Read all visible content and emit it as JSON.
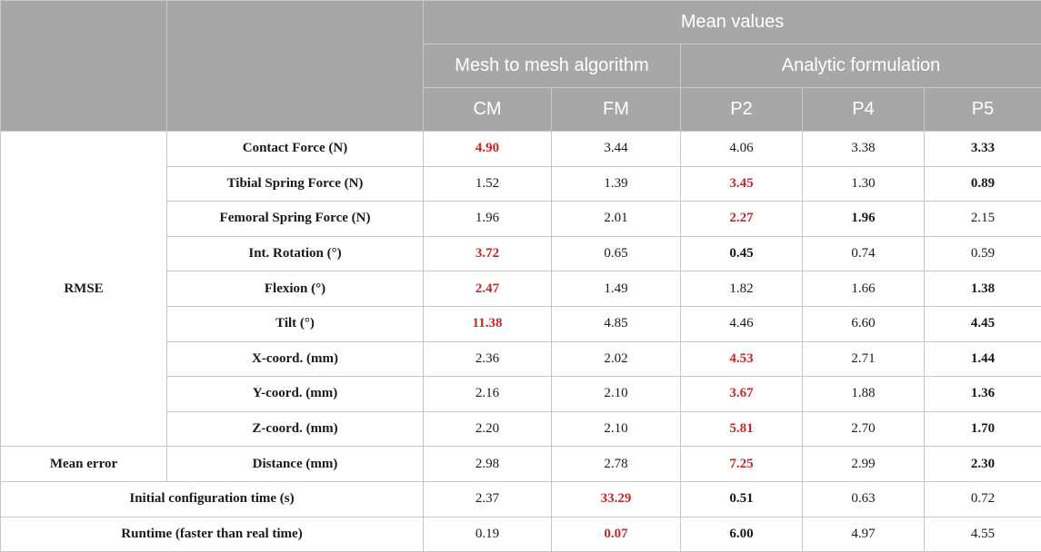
{
  "header": {
    "group_title": "Mean values",
    "subgroup_mesh": "Mesh to mesh algorithm",
    "subgroup_analytic": "Analytic formulation",
    "columns": [
      "CM",
      "FM",
      "P2",
      "P4",
      "P5"
    ]
  },
  "groups": {
    "rmse": "RMSE",
    "mean_error": "Mean error"
  },
  "rows": [
    {
      "label": "Contact Force (N)",
      "values": [
        "4.90",
        "3.44",
        "4.06",
        "3.38",
        "3.33"
      ],
      "style": [
        "red",
        "",
        "",
        "",
        "bold"
      ]
    },
    {
      "label": "Tibial Spring Force (N)",
      "values": [
        "1.52",
        "1.39",
        "3.45",
        "1.30",
        "0.89"
      ],
      "style": [
        "",
        "",
        "red",
        "",
        "bold"
      ]
    },
    {
      "label": "Femoral Spring Force (N)",
      "values": [
        "1.96",
        "2.01",
        "2.27",
        "1.96",
        "2.15"
      ],
      "style": [
        "",
        "",
        "red",
        "bold",
        ""
      ]
    },
    {
      "label": "Int. Rotation (°)",
      "values": [
        "3.72",
        "0.65",
        "0.45",
        "0.74",
        "0.59"
      ],
      "style": [
        "red",
        "",
        "bold",
        "",
        ""
      ]
    },
    {
      "label": "Flexion (°)",
      "values": [
        "2.47",
        "1.49",
        "1.82",
        "1.66",
        "1.38"
      ],
      "style": [
        "red",
        "",
        "",
        "",
        "bold"
      ]
    },
    {
      "label": "Tilt (°)",
      "values": [
        "11.38",
        "4.85",
        "4.46",
        "6.60",
        "4.45"
      ],
      "style": [
        "red",
        "",
        "",
        "",
        "bold"
      ]
    },
    {
      "label": "X-coord. (mm)",
      "values": [
        "2.36",
        "2.02",
        "4.53",
        "2.71",
        "1.44"
      ],
      "style": [
        "",
        "",
        "red",
        "",
        "bold"
      ]
    },
    {
      "label": "Y-coord. (mm)",
      "values": [
        "2.16",
        "2.10",
        "3.67",
        "1.88",
        "1.36"
      ],
      "style": [
        "",
        "",
        "red",
        "",
        "bold"
      ]
    },
    {
      "label": "Z-coord. (mm)",
      "values": [
        "2.20",
        "2.10",
        "5.81",
        "2.70",
        "1.70"
      ],
      "style": [
        "",
        "",
        "red",
        "",
        "bold"
      ]
    },
    {
      "label": "Distance (mm)",
      "values": [
        "2.98",
        "2.78",
        "7.25",
        "2.99",
        "2.30"
      ],
      "style": [
        "",
        "",
        "red",
        "",
        "bold"
      ]
    },
    {
      "label": "Initial configuration time (s)",
      "values": [
        "2.37",
        "33.29",
        "0.51",
        "0.63",
        "0.72"
      ],
      "style": [
        "",
        "red",
        "bold",
        "",
        ""
      ]
    },
    {
      "label": "Runtime (faster than real time)",
      "values": [
        "0.19",
        "0.07",
        "6.00",
        "4.97",
        "4.55"
      ],
      "style": [
        "",
        "red",
        "bold",
        "",
        ""
      ]
    }
  ]
}
